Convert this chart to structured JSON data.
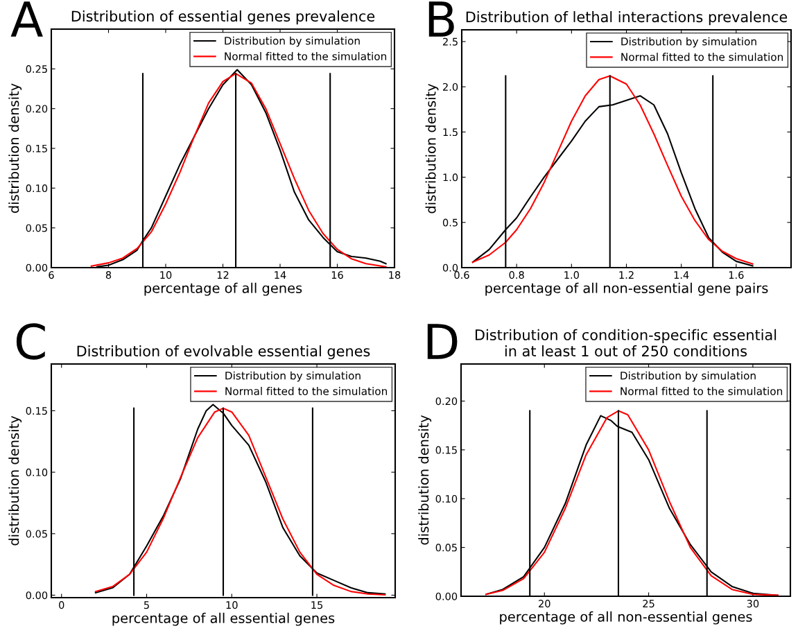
{
  "chart_data": [
    {
      "type": "line",
      "title": "Distribution of essential genes prevalence",
      "xlabel": "percentage of all genes",
      "ylabel": "distribution density",
      "annotations": [
        "A"
      ],
      "xlim": [
        6,
        18
      ],
      "ylim": [
        0,
        0.3
      ],
      "xticks": [
        6,
        8,
        10,
        12,
        14,
        16,
        18
      ],
      "yticks": [
        {
          "value": 0,
          "label": "0.00"
        },
        {
          "value": 0.05,
          "label": "0.05"
        },
        {
          "value": 0.1,
          "label": "0.10"
        },
        {
          "value": 0.15,
          "label": "0.15"
        },
        {
          "value": 0.2,
          "label": "0.20"
        },
        {
          "value": 0.25,
          "label": "0.25"
        }
      ],
      "grid": false,
      "legend": "top right",
      "series": [
        {
          "name": "Distribution by simulation",
          "color": "#000000",
          "x": [
            7.6,
            8.0,
            8.5,
            9.0,
            9.2,
            9.5,
            10,
            10.5,
            11,
            11.5,
            12,
            12.5,
            13,
            13.5,
            14,
            14.5,
            15,
            15.5,
            16,
            16.5,
            17,
            17.5,
            17.7
          ],
          "values": [
            0.001,
            0.003,
            0.01,
            0.022,
            0.034,
            0.05,
            0.09,
            0.13,
            0.165,
            0.2,
            0.23,
            0.249,
            0.23,
            0.195,
            0.148,
            0.095,
            0.06,
            0.038,
            0.02,
            0.014,
            0.012,
            0.008,
            0.005
          ]
        },
        {
          "name": "Normal fitted to the simulation",
          "color": "#ff0000",
          "x": [
            7.4,
            8,
            8.5,
            9,
            9.5,
            10,
            10.5,
            11,
            11.5,
            12,
            12.45,
            13,
            13.5,
            14,
            14.5,
            15,
            15.5,
            16,
            16.5,
            17,
            17.7
          ],
          "values": [
            0.002,
            0.006,
            0.012,
            0.024,
            0.045,
            0.08,
            0.12,
            0.165,
            0.207,
            0.234,
            0.244,
            0.232,
            0.2,
            0.156,
            0.112,
            0.072,
            0.043,
            0.023,
            0.011,
            0.005,
            0.001
          ]
        },
        {
          "color": "#000000",
          "x": [
            9.2,
            9.2
          ],
          "values": [
            0,
            0.244
          ]
        },
        {
          "color": "#000000",
          "x": [
            12.45,
            12.45
          ],
          "values": [
            0,
            0.244
          ]
        },
        {
          "color": "#000000",
          "x": [
            15.75,
            15.75
          ],
          "values": [
            0,
            0.244
          ]
        }
      ]
    },
    {
      "type": "line",
      "title": "Distribution of lethal interactions prevalence",
      "xlabel": "percentage of all non-essential gene pairs",
      "ylabel": "distribution density",
      "annotations": [
        "B"
      ],
      "xlim": [
        0.6,
        1.8
      ],
      "ylim": [
        0,
        2.63
      ],
      "xticks": [
        {
          "value": 0.6,
          "label": "0.6"
        },
        {
          "value": 0.8,
          "label": "0.8"
        },
        {
          "value": 1.0,
          "label": "1.0"
        },
        {
          "value": 1.2,
          "label": "1.2"
        },
        {
          "value": 1.4,
          "label": "1.4"
        },
        {
          "value": 1.6,
          "label": "1.6"
        }
      ],
      "yticks": [
        {
          "value": 0,
          "label": "0.0"
        },
        {
          "value": 0.5,
          "label": "0.5"
        },
        {
          "value": 1.0,
          "label": "1.0"
        },
        {
          "value": 1.5,
          "label": "1.5"
        },
        {
          "value": 2.0,
          "label": "2.0"
        },
        {
          "value": 2.5,
          "label": "2.5"
        }
      ],
      "grid": false,
      "legend": "top right",
      "series": [
        {
          "name": "Distribution by simulation",
          "color": "#000000",
          "x": [
            0.64,
            0.7,
            0.76,
            0.8,
            0.85,
            0.9,
            0.95,
            1.0,
            1.05,
            1.1,
            1.15,
            1.2,
            1.25,
            1.3,
            1.35,
            1.4,
            1.45,
            1.5,
            1.55,
            1.6,
            1.66
          ],
          "values": [
            0.06,
            0.2,
            0.42,
            0.55,
            0.78,
            1.0,
            1.2,
            1.4,
            1.62,
            1.78,
            1.8,
            1.85,
            1.9,
            1.8,
            1.48,
            1.05,
            0.65,
            0.33,
            0.17,
            0.07,
            0.02
          ]
        },
        {
          "name": "Normal fitted to the simulation",
          "color": "#ff0000",
          "x": [
            0.64,
            0.7,
            0.76,
            0.8,
            0.85,
            0.9,
            0.95,
            1.0,
            1.05,
            1.1,
            1.14,
            1.2,
            1.25,
            1.3,
            1.35,
            1.4,
            1.45,
            1.5,
            1.55,
            1.6,
            1.66
          ],
          "values": [
            0.06,
            0.14,
            0.28,
            0.42,
            0.65,
            0.94,
            1.28,
            1.62,
            1.9,
            2.08,
            2.12,
            2.03,
            1.8,
            1.48,
            1.13,
            0.79,
            0.52,
            0.31,
            0.18,
            0.1,
            0.04
          ]
        },
        {
          "color": "#000000",
          "x": [
            0.76,
            0.76
          ],
          "values": [
            0,
            2.12
          ]
        },
        {
          "color": "#000000",
          "x": [
            1.14,
            1.14
          ],
          "values": [
            0,
            2.12
          ]
        },
        {
          "color": "#000000",
          "x": [
            1.515,
            1.515
          ],
          "values": [
            0,
            2.12
          ]
        }
      ]
    },
    {
      "type": "line",
      "title": "Distribution of evolvable essential genes",
      "xlabel": "percentage of all essential genes",
      "ylabel": "distribution density",
      "annotations": [
        "C"
      ],
      "xlim": [
        -0.6,
        19.6
      ],
      "ylim": [
        -0.002,
        0.188
      ],
      "xticks": [
        0,
        5,
        10,
        15
      ],
      "yticks": [
        {
          "value": 0,
          "label": "0.00"
        },
        {
          "value": 0.05,
          "label": "0.05"
        },
        {
          "value": 0.1,
          "label": "0.10"
        },
        {
          "value": 0.15,
          "label": "0.15"
        }
      ],
      "grid": false,
      "legend": "top right",
      "series": [
        {
          "name": "Distribution by simulation",
          "color": "#000000",
          "x": [
            2,
            3,
            4,
            5,
            6,
            7,
            8,
            8.5,
            8.9,
            9.5,
            10,
            11,
            12,
            13,
            14,
            15,
            16,
            17,
            18,
            19
          ],
          "values": [
            0.002,
            0.006,
            0.017,
            0.04,
            0.065,
            0.095,
            0.135,
            0.15,
            0.155,
            0.148,
            0.138,
            0.122,
            0.092,
            0.055,
            0.032,
            0.018,
            0.012,
            0.006,
            0.002,
            0.001
          ]
        },
        {
          "name": "Normal fitted to the simulation",
          "color": "#ff0000",
          "x": [
            2,
            3,
            4,
            5,
            6,
            7,
            8,
            9,
            9.5,
            10,
            11,
            12,
            13,
            14,
            15,
            16,
            17,
            18,
            19
          ],
          "values": [
            0.003,
            0.007,
            0.017,
            0.035,
            0.063,
            0.096,
            0.128,
            0.149,
            0.152,
            0.149,
            0.13,
            0.096,
            0.062,
            0.035,
            0.017,
            0.008,
            0.003,
            0.001,
            0.0003
          ]
        },
        {
          "color": "#000000",
          "x": [
            4.25,
            4.25
          ],
          "values": [
            0,
            0.152
          ]
        },
        {
          "color": "#000000",
          "x": [
            9.5,
            9.5
          ],
          "values": [
            0,
            0.152
          ]
        },
        {
          "color": "#000000",
          "x": [
            14.75,
            14.75
          ],
          "values": [
            0,
            0.152
          ]
        }
      ]
    },
    {
      "type": "line",
      "title": "Distribution of condition-specific essential\nin at least 1 out of 250 conditions",
      "xlabel": "percentage of all non-essential genes",
      "ylabel": "distribution density",
      "annotations": [
        "D"
      ],
      "xlim": [
        16,
        31.8
      ],
      "ylim": [
        0,
        0.238
      ],
      "xticks": [
        20,
        25,
        30
      ],
      "yticks": [
        {
          "value": 0,
          "label": "0.00"
        },
        {
          "value": 0.05,
          "label": "0.05"
        },
        {
          "value": 0.1,
          "label": "0.10"
        },
        {
          "value": 0.15,
          "label": "0.15"
        },
        {
          "value": 0.2,
          "label": "0.20"
        }
      ],
      "grid": false,
      "legend": "top right",
      "series": [
        {
          "name": "Distribution by simulation",
          "color": "#000000",
          "x": [
            17.2,
            18,
            19,
            20,
            21,
            22,
            22.7,
            23.2,
            23.5,
            24.2,
            25,
            26,
            27,
            28,
            29,
            30,
            31.2
          ],
          "values": [
            0.002,
            0.007,
            0.02,
            0.05,
            0.095,
            0.155,
            0.185,
            0.18,
            0.174,
            0.168,
            0.14,
            0.09,
            0.053,
            0.025,
            0.01,
            0.003,
            0.001
          ]
        },
        {
          "name": "Normal fitted to the simulation",
          "color": "#ff0000",
          "x": [
            17.2,
            18,
            19,
            20,
            21,
            22,
            23,
            23.55,
            24,
            25,
            26,
            27,
            28,
            29,
            30,
            31.2
          ],
          "values": [
            0.002,
            0.006,
            0.018,
            0.045,
            0.09,
            0.145,
            0.183,
            0.19,
            0.186,
            0.15,
            0.097,
            0.05,
            0.021,
            0.007,
            0.002,
            0.001
          ]
        },
        {
          "color": "#000000",
          "x": [
            19.3,
            19.3
          ],
          "values": [
            0,
            0.19
          ]
        },
        {
          "color": "#000000",
          "x": [
            23.55,
            23.55
          ],
          "values": [
            0,
            0.19
          ]
        },
        {
          "color": "#000000",
          "x": [
            27.8,
            27.8
          ],
          "values": [
            0,
            0.19
          ]
        }
      ]
    }
  ]
}
